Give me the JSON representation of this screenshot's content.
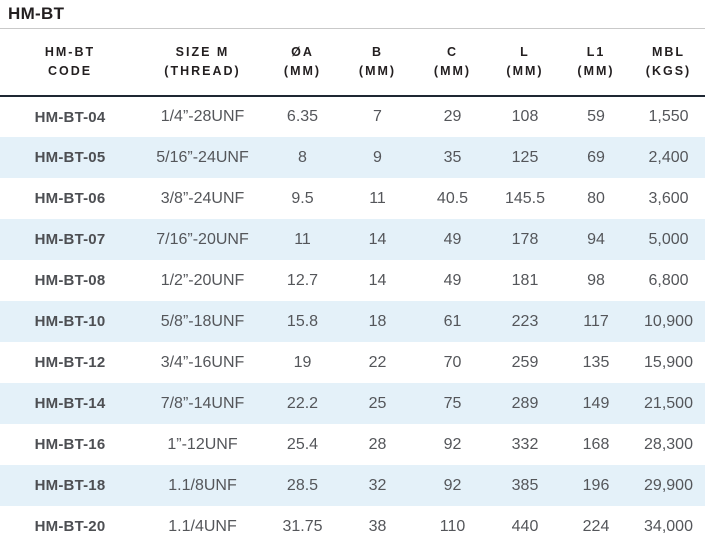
{
  "page_title": "HM-BT",
  "colors": {
    "stripe_blue": "#e4f1f9",
    "header_rule": "#1e2733",
    "title_rule": "#c9c9c9",
    "header_text": "#231f20",
    "code_text": "#4d4f53",
    "value_text": "#54565a",
    "background": "#ffffff"
  },
  "table": {
    "columns": [
      {
        "id": "code",
        "line1": "HM-BT",
        "line2": "CODE"
      },
      {
        "id": "size",
        "line1": "SIZE M",
        "line2": "(THREAD)"
      },
      {
        "id": "dia-a",
        "line1": "ØA",
        "line2": "(MM)"
      },
      {
        "id": "b",
        "line1": "B",
        "line2": "(MM)"
      },
      {
        "id": "c",
        "line1": "C",
        "line2": "(MM)"
      },
      {
        "id": "l",
        "line1": "L",
        "line2": "(MM)"
      },
      {
        "id": "l1",
        "line1": "L1",
        "line2": "(MM)"
      },
      {
        "id": "mbl",
        "line1": "MBL",
        "line2": "(KGS)"
      }
    ],
    "rows": [
      [
        "HM-BT-04",
        "1/4”-28UNF",
        "6.35",
        "7",
        "29",
        "108",
        "59",
        "1,550"
      ],
      [
        "HM-BT-05",
        "5/16”-24UNF",
        "8",
        "9",
        "35",
        "125",
        "69",
        "2,400"
      ],
      [
        "HM-BT-06",
        "3/8”-24UNF",
        "9.5",
        "11",
        "40.5",
        "145.5",
        "80",
        "3,600"
      ],
      [
        "HM-BT-07",
        "7/16”-20UNF",
        "11",
        "14",
        "49",
        "178",
        "94",
        "5,000"
      ],
      [
        "HM-BT-08",
        "1/2”-20UNF",
        "12.7",
        "14",
        "49",
        "181",
        "98",
        "6,800"
      ],
      [
        "HM-BT-10",
        "5/8”-18UNF",
        "15.8",
        "18",
        "61",
        "223",
        "117",
        "10,900"
      ],
      [
        "HM-BT-12",
        "3/4”-16UNF",
        "19",
        "22",
        "70",
        "259",
        "135",
        "15,900"
      ],
      [
        "HM-BT-14",
        "7/8”-14UNF",
        "22.2",
        "25",
        "75",
        "289",
        "149",
        "21,500"
      ],
      [
        "HM-BT-16",
        "1”-12UNF",
        "25.4",
        "28",
        "92",
        "332",
        "168",
        "28,300"
      ],
      [
        "HM-BT-18",
        "1.1/8UNF",
        "28.5",
        "32",
        "92",
        "385",
        "196",
        "29,900"
      ],
      [
        "HM-BT-20",
        "1.1/4UNF",
        "31.75",
        "38",
        "110",
        "440",
        "224",
        "34,000"
      ]
    ]
  }
}
